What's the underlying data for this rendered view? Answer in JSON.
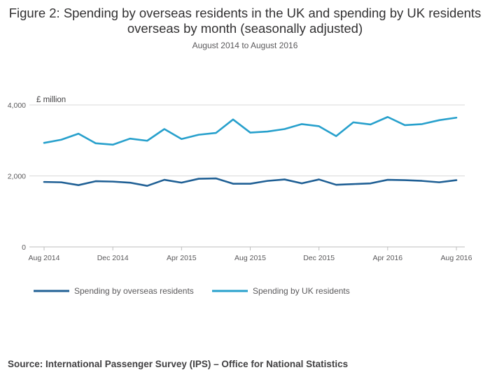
{
  "chart_data": {
    "type": "line",
    "title": "Figure 2: Spending by overseas residents in the UK and spending by UK residents overseas by month (seasonally adjusted)",
    "subtitle": "August 2014 to August 2016",
    "ylabel": "£ million",
    "xlabel": "",
    "ylim": [
      0,
      4000
    ],
    "y_ticks": [
      0,
      2000,
      4000
    ],
    "y_tick_labels": [
      "0",
      "2,000",
      "4,000"
    ],
    "x": [
      "Aug 2014",
      "Sep 2014",
      "Oct 2014",
      "Nov 2014",
      "Dec 2014",
      "Jan 2015",
      "Feb 2015",
      "Mar 2015",
      "Apr 2015",
      "May 2015",
      "Jun 2015",
      "Jul 2015",
      "Aug 2015",
      "Sep 2015",
      "Oct 2015",
      "Nov 2015",
      "Dec 2015",
      "Jan 2016",
      "Feb 2016",
      "Mar 2016",
      "Apr 2016",
      "May 2016",
      "Jun 2016",
      "Jul 2016",
      "Aug 2016"
    ],
    "x_tick_labels": [
      "Aug 2014",
      "Dec 2014",
      "Apr 2015",
      "Aug 2015",
      "Dec 2015",
      "Apr 2016",
      "Aug 2016"
    ],
    "x_tick_every": 4,
    "grid": true,
    "legend_position": "bottom",
    "series": [
      {
        "name": "Spending by overseas residents",
        "color": "#206095",
        "values": [
          1830,
          1820,
          1740,
          1850,
          1840,
          1810,
          1720,
          1890,
          1810,
          1920,
          1930,
          1780,
          1780,
          1860,
          1900,
          1790,
          1900,
          1750,
          1770,
          1790,
          1890,
          1880,
          1860,
          1820,
          1880
        ]
      },
      {
        "name": "Spending by UK residents",
        "color": "#27a0cc",
        "values": [
          2930,
          3020,
          3190,
          2920,
          2880,
          3050,
          2990,
          3320,
          3040,
          3160,
          3210,
          3590,
          3220,
          3250,
          3320,
          3460,
          3400,
          3120,
          3510,
          3450,
          3660,
          3430,
          3460,
          3570,
          3640
        ]
      }
    ]
  },
  "source": "Source: International Passenger Survey (IPS) – Office for National Statistics"
}
